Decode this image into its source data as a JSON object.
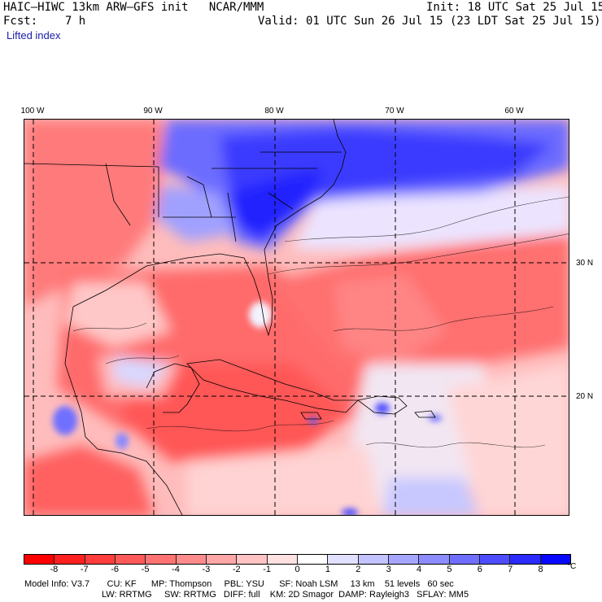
{
  "header": {
    "model": "HAIC–HIWC 13km ARW–GFS init   NCAR/MMM",
    "init": "Init: 18 UTC Sat 25 Jul 15",
    "fcst": "Fcst:    7 h",
    "valid": "Valid: 01 UTC Sun 26 Jul 15 (23 LDT Sat 25 Jul 15)",
    "field": "Lifted index"
  },
  "map": {
    "lon_labels": [
      "100 W",
      "90 W",
      "80 W",
      "70 W",
      "60 W"
    ],
    "lat_labels": [
      "30 N",
      "20 N"
    ]
  },
  "colorbar": {
    "ticks": [
      "-8",
      "-7",
      "-6",
      "-5",
      "-4",
      "-3",
      "-2",
      "-1",
      "0",
      "1",
      "2",
      "3",
      "4",
      "5",
      "6",
      "7",
      "8"
    ],
    "unit": "°C",
    "colors": [
      "#ff0000",
      "#ff2020",
      "#ff3d3d",
      "#ff5a5a",
      "#ff7373",
      "#ff8c8c",
      "#ffa6a6",
      "#ffc3c3",
      "#ffe1e1",
      "#ffffff",
      "#e1e1ff",
      "#c3c3ff",
      "#a6a6ff",
      "#8c8cff",
      "#6f6fff",
      "#4d4dff",
      "#2b2bff",
      "#0808ff"
    ]
  },
  "model_info": {
    "line1": "Model Info: V3.7       CU: KF      MP: Thompson     PBL: YSU      SF: Noah LSM     13 km    51 levels   60 sec",
    "line2": "LW: RRTMG     SW: RRTMG   DIFF: full    KM: 2D Smagor  DAMP: Rayleigh3   SFLAY: MM5"
  }
}
